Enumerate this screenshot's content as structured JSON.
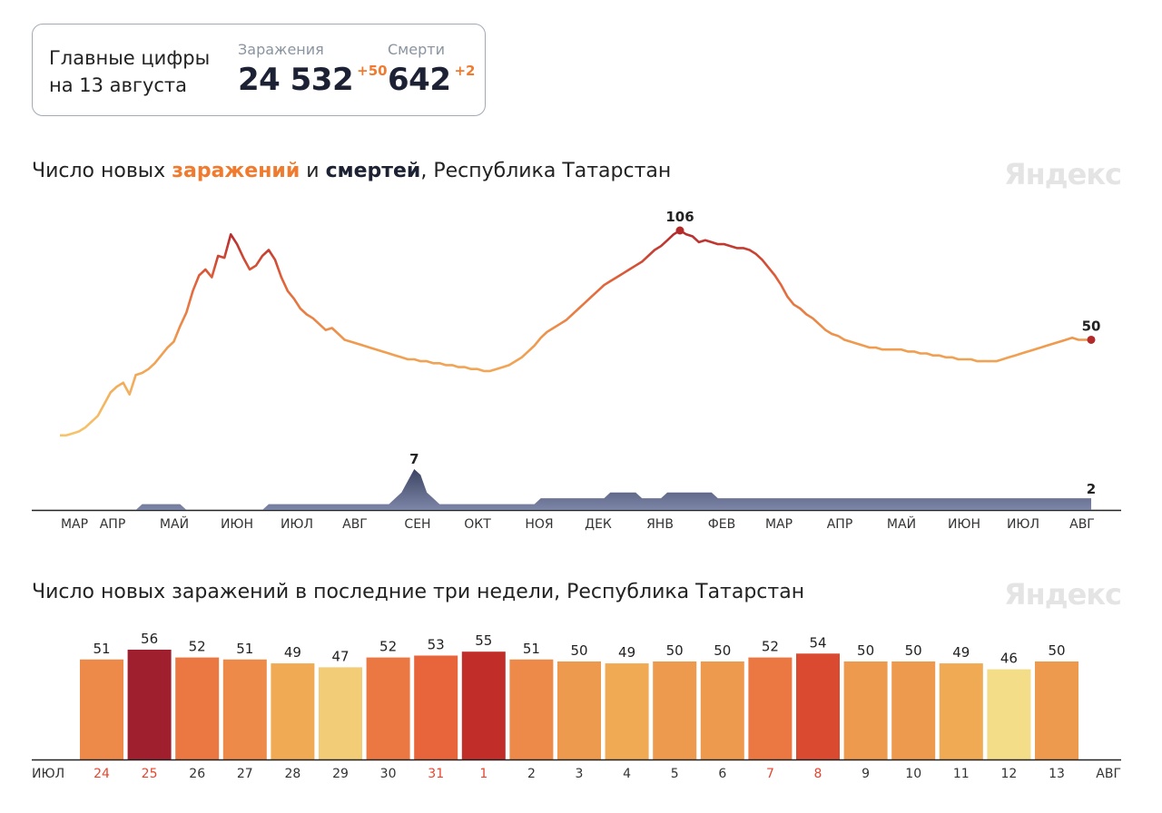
{
  "summary": {
    "title": "Главные цифры на 13 августа",
    "infections": {
      "label": "Заражения",
      "value": "24 532",
      "delta": "+50"
    },
    "deaths": {
      "label": "Смерти",
      "value": "642",
      "delta": "+2"
    }
  },
  "watermark": "Яндекс",
  "chart1_title": {
    "prefix": "Число новых ",
    "infections_word": "заражений",
    "middle": " и ",
    "deaths_word": "смертей",
    "suffix": ", Республика Татарстан"
  },
  "chart2_title": "Число новых заражений в последние три недели, Республика Татарстан",
  "colors": {
    "accent": "#f07b2f",
    "deaths_area": "#5b6388",
    "peak_marker": "#b22a2a",
    "low_color": "#f5d27a",
    "high_color": "#9f1f2f"
  },
  "chart_data": [
    {
      "type": "line",
      "title": "Число новых заражений и смертей, Республика Татарстан",
      "series": [
        {
          "name": "заражений",
          "values": [
            1,
            1,
            2,
            3,
            5,
            8,
            11,
            17,
            23,
            26,
            28,
            22,
            32,
            33,
            35,
            38,
            42,
            46,
            49,
            57,
            64,
            75,
            83,
            86,
            82,
            93,
            92,
            104,
            99,
            92,
            86,
            88,
            93,
            96,
            91,
            82,
            75,
            71,
            66,
            63,
            61,
            58,
            55,
            56,
            53,
            50,
            49,
            48,
            47,
            46,
            45,
            44,
            43,
            42,
            41,
            40,
            40,
            39,
            39,
            38,
            38,
            37,
            37,
            36,
            36,
            35,
            35,
            34,
            34,
            35,
            36,
            37,
            39,
            41,
            44,
            47,
            51,
            54,
            56,
            58,
            60,
            63,
            66,
            69,
            72,
            75,
            78,
            80,
            82,
            84,
            86,
            88,
            90,
            93,
            96,
            98,
            101,
            104,
            106,
            104,
            103,
            100,
            101,
            100,
            99,
            99,
            98,
            97,
            97,
            96,
            94,
            91,
            87,
            83,
            78,
            72,
            68,
            66,
            63,
            61,
            58,
            55,
            53,
            52,
            50,
            49,
            48,
            47,
            46,
            46,
            45,
            45,
            45,
            45,
            44,
            44,
            43,
            43,
            42,
            42,
            41,
            41,
            40,
            40,
            40,
            39,
            39,
            39,
            39,
            40,
            41,
            42,
            43,
            44,
            45,
            46,
            47,
            48,
            49,
            50,
            51,
            50,
            50,
            50
          ],
          "color": "#f07b2f"
        },
        {
          "name": "смертей",
          "values": [
            0,
            0,
            0,
            0,
            0,
            0,
            0,
            0,
            0,
            0,
            0,
            0,
            0,
            1,
            1,
            1,
            1,
            1,
            1,
            1,
            0,
            0,
            0,
            0,
            0,
            0,
            0,
            0,
            0,
            0,
            0,
            0,
            0,
            1,
            1,
            1,
            1,
            1,
            1,
            1,
            1,
            1,
            1,
            1,
            1,
            1,
            1,
            1,
            1,
            1,
            1,
            1,
            1,
            2,
            3,
            5,
            7,
            6,
            3,
            2,
            1,
            1,
            1,
            1,
            1,
            1,
            1,
            1,
            1,
            1,
            1,
            1,
            1,
            1,
            1,
            1,
            2,
            2,
            2,
            2,
            2,
            2,
            2,
            2,
            2,
            2,
            2,
            3,
            3,
            3,
            3,
            3,
            2,
            2,
            2,
            2,
            3,
            3,
            3,
            3,
            3,
            3,
            3,
            3,
            2,
            2,
            2,
            2,
            2,
            2,
            2,
            2,
            2,
            2,
            2,
            2,
            2,
            2,
            2,
            2,
            2,
            2,
            2,
            2,
            2,
            2,
            2,
            2,
            2,
            2,
            2,
            2,
            2,
            2,
            2,
            2,
            2,
            2,
            2,
            2,
            2,
            2,
            2,
            2,
            2,
            2,
            2,
            2,
            2,
            2,
            2,
            2,
            2,
            2,
            2,
            2,
            2,
            2,
            2,
            2,
            2,
            2,
            2,
            2
          ],
          "color": "#5b6388"
        }
      ],
      "x_tick_labels": [
        "МАР",
        "АПР",
        "МАЙ",
        "ИЮН",
        "ИЮЛ",
        "АВГ",
        "СЕН",
        "ОКТ",
        "НОЯ",
        "ДЕК",
        "ЯНВ",
        "ФЕВ",
        "МАР",
        "АПР",
        "МАЙ",
        "ИЮН",
        "ИЮЛ",
        "АВГ"
      ],
      "annotations": {
        "infections_peak": "106",
        "infections_last": "50",
        "deaths_peak": "7",
        "deaths_last": "2"
      }
    },
    {
      "type": "bar",
      "title": "Число новых заражений в последние три недели, Республика Татарстан",
      "categories": [
        "24",
        "25",
        "26",
        "27",
        "28",
        "29",
        "30",
        "31",
        "1",
        "2",
        "3",
        "4",
        "5",
        "6",
        "7",
        "8",
        "9",
        "10",
        "11",
        "12",
        "13"
      ],
      "values": [
        51,
        56,
        52,
        51,
        49,
        47,
        52,
        53,
        55,
        51,
        50,
        49,
        50,
        50,
        52,
        54,
        50,
        50,
        49,
        46,
        50
      ],
      "weekend": [
        true,
        true,
        false,
        false,
        false,
        false,
        false,
        true,
        true,
        false,
        false,
        false,
        false,
        false,
        true,
        true,
        false,
        false,
        false,
        false,
        false
      ],
      "month_start": "ИЮЛ",
      "month_end": "АВГ"
    }
  ]
}
